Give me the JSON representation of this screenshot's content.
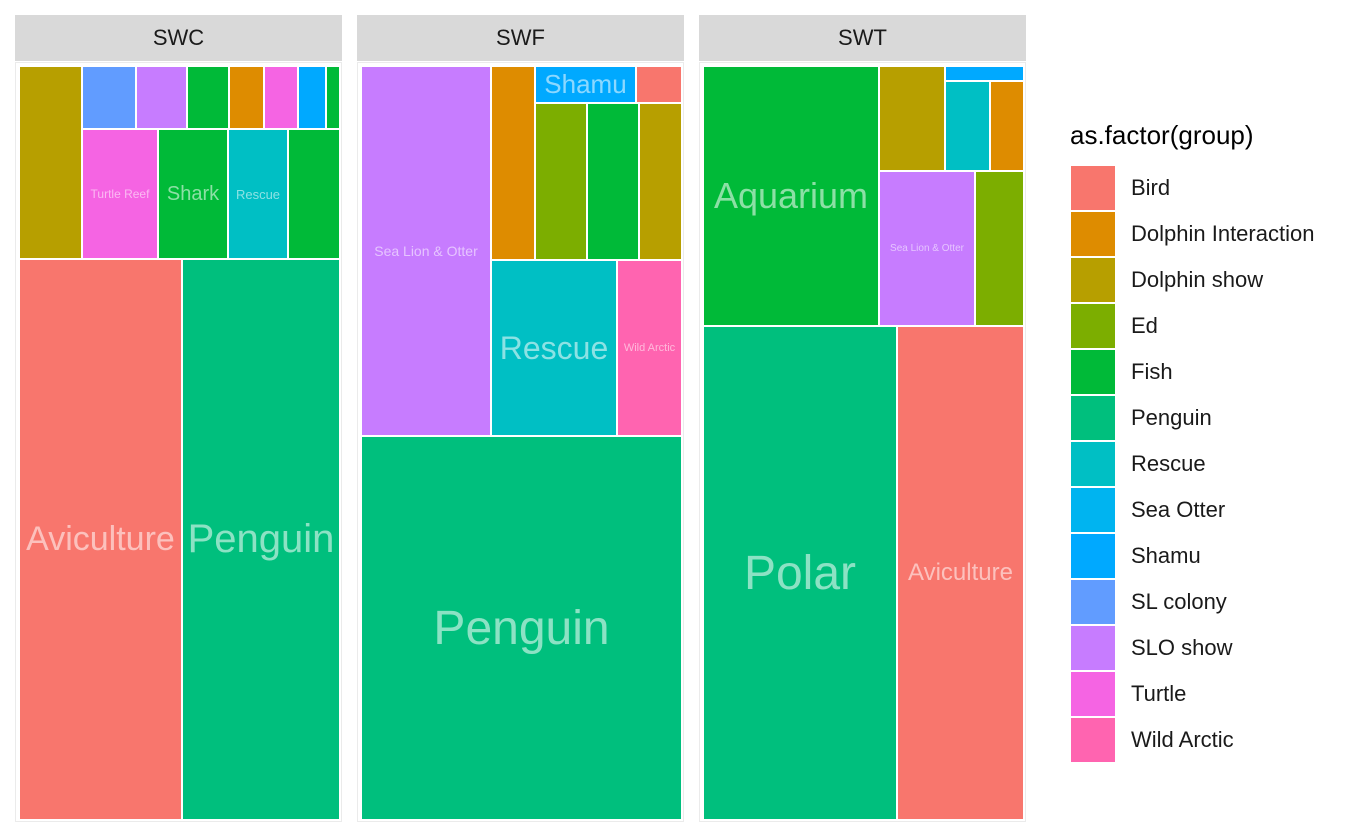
{
  "chart_data": {
    "type": "treemap",
    "legend_title": "as.factor(group)",
    "legend_position": "right",
    "groups": [
      {
        "name": "Bird",
        "color": "#F8766D"
      },
      {
        "name": "Dolphin Interaction",
        "color": "#DE8C00"
      },
      {
        "name": "Dolphin show",
        "color": "#B79F00"
      },
      {
        "name": "Ed",
        "color": "#7CAE00"
      },
      {
        "name": "Fish",
        "color": "#00BA38"
      },
      {
        "name": "Penguin",
        "color": "#00BF7D"
      },
      {
        "name": "Rescue",
        "color": "#00BFC4"
      },
      {
        "name": "Sea Otter",
        "color": "#00B4F0"
      },
      {
        "name": "Shamu",
        "color": "#00A9FF"
      },
      {
        "name": "SL colony",
        "color": "#619CFF"
      },
      {
        "name": "SLO show",
        "color": "#C77CFF"
      },
      {
        "name": "Turtle",
        "color": "#F564E3"
      },
      {
        "name": "Wild Arctic",
        "color": "#FF64B0"
      }
    ],
    "facets": [
      {
        "name": "SWC",
        "tiles": [
          {
            "label": "Aviculture",
            "group": "Bird",
            "area": 47.2
          },
          {
            "label": "Penguin",
            "group": "Penguin",
            "area": 46.5
          },
          {
            "label": "",
            "group": "Dolphin show",
            "area": 7.2
          },
          {
            "label": "Turtle Reef",
            "group": "Turtle",
            "area": 5.2
          },
          {
            "label": "Shark",
            "group": "Fish",
            "area": 4.8
          },
          {
            "label": "Rescue",
            "group": "Rescue",
            "area": 4.1
          },
          {
            "label": "",
            "group": "Fish",
            "area": 3.5
          },
          {
            "label": "",
            "group": "SL colony",
            "area": 2.4
          },
          {
            "label": "",
            "group": "SLO show",
            "area": 2.3
          },
          {
            "label": "",
            "group": "Fish",
            "area": 1.9
          },
          {
            "label": "",
            "group": "Dolphin Interaction",
            "area": 1.6
          },
          {
            "label": "",
            "group": "Turtle",
            "area": 1.5
          },
          {
            "label": "",
            "group": "Shamu",
            "area": 1.3
          },
          {
            "label": "",
            "group": "Fish",
            "area": 0.6
          }
        ]
      },
      {
        "name": "SWF",
        "tiles": [
          {
            "label": "Penguin",
            "group": "Penguin",
            "area": 50.9
          },
          {
            "label": "Sea Lion & Otter",
            "group": "SLO show",
            "area": 19.4
          },
          {
            "label": "Rescue",
            "group": "Rescue",
            "area": 9.8
          },
          {
            "label": "Wild Arctic",
            "group": "Wild Arctic",
            "area": 4.8
          },
          {
            "label": "Shamu",
            "group": "Shamu",
            "area": 3.2
          },
          {
            "label": "",
            "group": "Dolphin Interaction",
            "area": 4.4
          },
          {
            "label": "",
            "group": "Ed",
            "area": 3.6
          },
          {
            "label": "",
            "group": "Fish",
            "area": 3.6
          },
          {
            "label": "",
            "group": "Dolphin show",
            "area": 3.1
          },
          {
            "label": "",
            "group": "Bird",
            "area": 1.2
          }
        ]
      },
      {
        "name": "SWT",
        "tiles": [
          {
            "label": "Polar",
            "group": "Penguin",
            "area": 39.4
          },
          {
            "label": "Aviculture",
            "group": "Bird",
            "area": 25.4
          },
          {
            "label": "Aquarium",
            "group": "Fish",
            "area": 18.8
          },
          {
            "label": "Sea Lion & Otter",
            "group": "SLO show",
            "area": 6.5
          },
          {
            "label": "",
            "group": "Ed",
            "area": 3.2
          },
          {
            "label": "",
            "group": "Dolphin show",
            "area": 2.9
          },
          {
            "label": "",
            "group": "Rescue",
            "area": 2.0
          },
          {
            "label": "",
            "group": "Dolphin Interaction",
            "area": 2.0
          },
          {
            "label": "",
            "group": "Shamu",
            "area": 0.8
          }
        ]
      }
    ]
  }
}
